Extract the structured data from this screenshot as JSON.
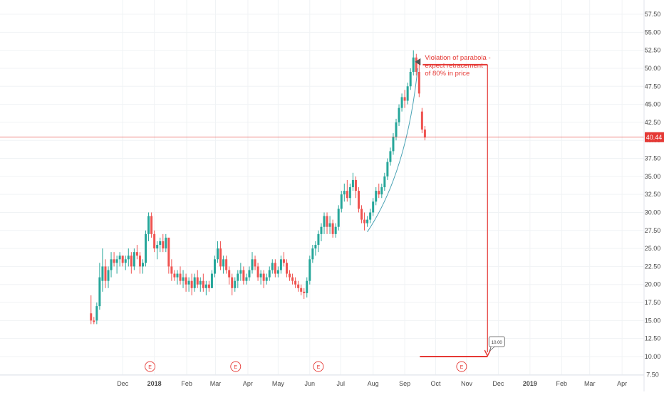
{
  "chart_data": {
    "type": "candlestick",
    "title": "",
    "xlabel": "",
    "ylabel": "",
    "y_axis_position": "right",
    "ylim": [
      7.5,
      58.75
    ],
    "y_ticks": [
      "57.50",
      "55.00",
      "52.50",
      "50.00",
      "47.50",
      "45.00",
      "42.50",
      "40.00",
      "37.50",
      "35.00",
      "32.50",
      "30.00",
      "27.50",
      "25.00",
      "22.50",
      "20.00",
      "17.50",
      "15.00",
      "12.50",
      "10.00",
      "7.50"
    ],
    "x_ticks": [
      {
        "label": "Dec",
        "week": 2.0
      },
      {
        "label": "2018",
        "week": 6.4
      },
      {
        "label": "Feb",
        "week": 10.9
      },
      {
        "label": "Mar",
        "week": 14.9
      },
      {
        "label": "Apr",
        "week": 19.4
      },
      {
        "label": "May",
        "week": 23.6
      },
      {
        "label": "Jun",
        "week": 28.0
      },
      {
        "label": "Jul",
        "week": 32.3
      },
      {
        "label": "Aug",
        "week": 36.8
      },
      {
        "label": "Sep",
        "week": 41.2
      },
      {
        "label": "Oct",
        "week": 45.5
      },
      {
        "label": "Nov",
        "week": 49.8
      },
      {
        "label": "Dec",
        "week": 54.2
      },
      {
        "label": "2019",
        "week": 58.6
      },
      {
        "label": "Feb",
        "week": 63.0
      },
      {
        "label": "Mar",
        "week": 66.9
      },
      {
        "label": "Apr",
        "week": 71.4
      }
    ],
    "x_unit_note": "weeks from start of Dec 2017 axis window",
    "candles": [
      [
        -2.4,
        18.5,
        14.5,
        16.0,
        15.0
      ],
      [
        -2.0,
        15.5,
        14.5,
        15.0,
        14.8
      ],
      [
        -1.6,
        17.5,
        14.5,
        15.0,
        17.0
      ],
      [
        -1.2,
        23.0,
        16.5,
        17.0,
        21.0
      ],
      [
        -0.8,
        25.0,
        19.0,
        20.5,
        22.5
      ],
      [
        -0.4,
        23.5,
        19.5,
        22.5,
        20.5
      ],
      [
        0.0,
        22.5,
        19.5,
        20.5,
        22.0
      ],
      [
        0.4,
        24.5,
        21.0,
        22.0,
        23.5
      ],
      [
        0.8,
        24.5,
        22.5,
        23.5,
        23.0
      ],
      [
        1.2,
        24.0,
        21.5,
        23.0,
        23.5
      ],
      [
        1.6,
        24.5,
        22.5,
        23.5,
        24.0
      ],
      [
        2.0,
        24.0,
        22.5,
        24.0,
        23.0
      ],
      [
        2.4,
        24.0,
        22.0,
        23.0,
        23.5
      ],
      [
        2.8,
        25.0,
        22.5,
        23.5,
        24.0
      ],
      [
        3.2,
        24.5,
        21.5,
        24.0,
        22.5
      ],
      [
        3.6,
        25.0,
        22.0,
        22.5,
        24.5
      ],
      [
        4.0,
        25.5,
        23.5,
        24.5,
        24.0
      ],
      [
        4.4,
        24.5,
        21.5,
        24.0,
        22.5
      ],
      [
        4.8,
        23.5,
        21.5,
        22.5,
        23.0
      ],
      [
        5.2,
        27.5,
        22.5,
        23.0,
        27.0
      ],
      [
        5.6,
        30.0,
        26.0,
        27.0,
        29.5
      ],
      [
        6.0,
        30.0,
        26.5,
        29.5,
        27.0
      ],
      [
        6.4,
        27.5,
        24.5,
        27.0,
        25.0
      ],
      [
        6.8,
        26.0,
        23.5,
        25.0,
        25.5
      ],
      [
        7.2,
        26.5,
        24.5,
        25.5,
        26.0
      ],
      [
        7.6,
        27.0,
        24.5,
        26.0,
        25.0
      ],
      [
        8.0,
        27.0,
        24.5,
        25.0,
        26.5
      ],
      [
        8.4,
        26.5,
        21.5,
        26.5,
        22.5
      ],
      [
        8.8,
        23.5,
        20.5,
        22.5,
        21.5
      ],
      [
        9.2,
        22.0,
        20.5,
        21.5,
        21.0
      ],
      [
        9.6,
        22.0,
        20.0,
        21.0,
        21.5
      ],
      [
        10.0,
        22.5,
        20.0,
        21.5,
        20.5
      ],
      [
        10.4,
        22.0,
        19.5,
        20.5,
        21.0
      ],
      [
        10.8,
        21.5,
        19.0,
        21.0,
        20.0
      ],
      [
        11.2,
        21.0,
        19.0,
        20.0,
        20.5
      ],
      [
        11.6,
        21.5,
        18.5,
        20.5,
        19.5
      ],
      [
        12.0,
        21.5,
        19.0,
        19.5,
        21.0
      ],
      [
        12.4,
        22.0,
        19.5,
        21.0,
        20.0
      ],
      [
        12.8,
        21.0,
        19.0,
        20.0,
        20.5
      ],
      [
        13.2,
        21.5,
        19.0,
        20.5,
        19.5
      ],
      [
        13.6,
        20.5,
        18.5,
        19.5,
        20.0
      ],
      [
        14.0,
        20.5,
        19.0,
        20.0,
        19.5
      ],
      [
        14.4,
        22.0,
        19.5,
        19.5,
        21.5
      ],
      [
        14.8,
        24.0,
        21.0,
        21.5,
        23.5
      ],
      [
        15.2,
        26.0,
        23.0,
        23.5,
        25.0
      ],
      [
        15.6,
        26.0,
        22.0,
        25.0,
        22.5
      ],
      [
        16.0,
        24.0,
        21.5,
        22.5,
        23.5
      ],
      [
        16.4,
        24.0,
        21.5,
        23.5,
        22.0
      ],
      [
        16.8,
        22.5,
        20.0,
        22.0,
        21.0
      ],
      [
        17.2,
        21.5,
        18.5,
        21.0,
        19.5
      ],
      [
        17.6,
        21.0,
        19.0,
        19.5,
        20.5
      ],
      [
        18.0,
        22.0,
        19.5,
        20.5,
        21.5
      ],
      [
        18.4,
        23.0,
        20.5,
        21.5,
        22.0
      ],
      [
        18.8,
        22.5,
        20.0,
        22.0,
        20.5
      ],
      [
        19.2,
        21.5,
        20.0,
        20.5,
        21.0
      ],
      [
        19.6,
        22.5,
        20.5,
        21.0,
        22.0
      ],
      [
        20.0,
        24.5,
        21.5,
        22.0,
        23.5
      ],
      [
        20.4,
        24.0,
        22.0,
        23.5,
        22.5
      ],
      [
        20.8,
        23.0,
        20.5,
        22.5,
        21.0
      ],
      [
        21.2,
        22.0,
        20.0,
        21.0,
        21.5
      ],
      [
        21.6,
        22.0,
        19.5,
        21.5,
        20.5
      ],
      [
        22.0,
        21.5,
        20.0,
        20.5,
        21.0
      ],
      [
        22.4,
        22.5,
        20.5,
        21.0,
        22.0
      ],
      [
        22.8,
        23.5,
        21.5,
        22.0,
        23.0
      ],
      [
        23.2,
        23.5,
        21.0,
        23.0,
        21.5
      ],
      [
        23.6,
        22.5,
        21.0,
        21.5,
        22.0
      ],
      [
        24.0,
        24.0,
        21.5,
        22.0,
        23.5
      ],
      [
        24.4,
        24.5,
        22.5,
        23.5,
        23.0
      ],
      [
        24.8,
        23.5,
        21.0,
        23.0,
        21.5
      ],
      [
        25.2,
        22.0,
        20.5,
        21.5,
        21.0
      ],
      [
        25.6,
        21.5,
        20.0,
        21.0,
        20.5
      ],
      [
        26.0,
        21.0,
        19.5,
        20.5,
        20.0
      ],
      [
        26.4,
        20.5,
        19.0,
        20.0,
        19.5
      ],
      [
        26.8,
        20.0,
        18.5,
        19.5,
        19.0
      ],
      [
        27.2,
        19.5,
        18.0,
        19.0,
        18.8
      ],
      [
        27.6,
        21.0,
        18.2,
        18.8,
        20.5
      ],
      [
        28.0,
        24.0,
        20.0,
        20.5,
        23.5
      ],
      [
        28.4,
        25.5,
        23.0,
        23.5,
        25.0
      ],
      [
        28.8,
        26.0,
        24.0,
        25.0,
        25.5
      ],
      [
        29.2,
        27.5,
        24.5,
        25.5,
        27.0
      ],
      [
        29.6,
        28.5,
        26.0,
        27.0,
        28.0
      ],
      [
        30.0,
        30.0,
        27.0,
        28.0,
        29.5
      ],
      [
        30.4,
        30.0,
        27.0,
        29.5,
        28.0
      ],
      [
        30.8,
        29.5,
        27.0,
        28.0,
        28.5
      ],
      [
        31.2,
        29.0,
        26.5,
        28.5,
        27.0
      ],
      [
        31.6,
        28.5,
        26.5,
        27.0,
        28.0
      ],
      [
        32.0,
        31.0,
        27.5,
        28.0,
        30.5
      ],
      [
        32.4,
        33.0,
        30.0,
        30.5,
        32.5
      ],
      [
        32.8,
        34.0,
        31.5,
        32.5,
        33.0
      ],
      [
        33.2,
        34.5,
        31.5,
        33.0,
        32.0
      ],
      [
        33.6,
        34.0,
        31.0,
        32.0,
        33.5
      ],
      [
        34.0,
        35.5,
        33.0,
        33.5,
        34.5
      ],
      [
        34.4,
        35.0,
        32.0,
        34.5,
        33.0
      ],
      [
        34.8,
        33.5,
        30.0,
        33.0,
        30.5
      ],
      [
        35.2,
        31.0,
        28.5,
        30.5,
        29.0
      ],
      [
        35.6,
        30.0,
        27.5,
        29.0,
        28.5
      ],
      [
        36.0,
        29.5,
        28.0,
        28.5,
        29.0
      ],
      [
        36.4,
        30.5,
        28.5,
        29.0,
        30.0
      ],
      [
        36.8,
        32.0,
        29.5,
        30.0,
        31.5
      ],
      [
        37.2,
        33.5,
        31.0,
        31.5,
        33.0
      ],
      [
        37.6,
        34.0,
        32.0,
        33.0,
        32.5
      ],
      [
        38.0,
        34.0,
        32.0,
        32.5,
        33.5
      ],
      [
        38.4,
        35.5,
        33.0,
        33.5,
        35.0
      ],
      [
        38.8,
        37.5,
        34.5,
        35.0,
        37.0
      ],
      [
        39.2,
        39.0,
        36.5,
        37.0,
        38.5
      ],
      [
        39.6,
        41.0,
        38.0,
        38.5,
        40.5
      ],
      [
        40.0,
        43.0,
        40.0,
        40.5,
        42.5
      ],
      [
        40.4,
        45.0,
        42.0,
        42.5,
        44.5
      ],
      [
        40.8,
        46.5,
        44.0,
        44.5,
        46.0
      ],
      [
        41.2,
        47.0,
        44.5,
        46.0,
        45.5
      ],
      [
        41.6,
        48.0,
        45.0,
        45.5,
        47.5
      ],
      [
        42.0,
        50.0,
        47.0,
        47.5,
        49.5
      ],
      [
        42.4,
        52.5,
        49.0,
        49.5,
        51.5
      ],
      [
        42.8,
        52.0,
        49.0,
        51.5,
        49.5
      ],
      [
        43.2,
        51.0,
        46.0,
        49.5,
        46.5
      ],
      [
        43.6,
        44.5,
        41.0,
        44.0,
        41.5
      ],
      [
        44.0,
        42.0,
        40.0,
        41.5,
        40.4
      ]
    ],
    "annotations": {
      "current_price": "40.44",
      "note_lines": [
        "Violation of parabola -",
        "expect retracement",
        "of 80% in price"
      ],
      "target_price": 10.0,
      "target_label": "10.00",
      "horizontal_marker_price": 50.5,
      "earnings_marker": "E",
      "earnings_weeks": [
        5.8,
        17.7,
        29.2,
        49.1
      ]
    },
    "colors": {
      "up": "#26a69a",
      "down": "#ef5350",
      "annotation": "#e53935",
      "parabola": "#4ba3b5",
      "grid": "#f0f3f5",
      "axis_text": "#4a4a4a"
    },
    "grid": true
  }
}
